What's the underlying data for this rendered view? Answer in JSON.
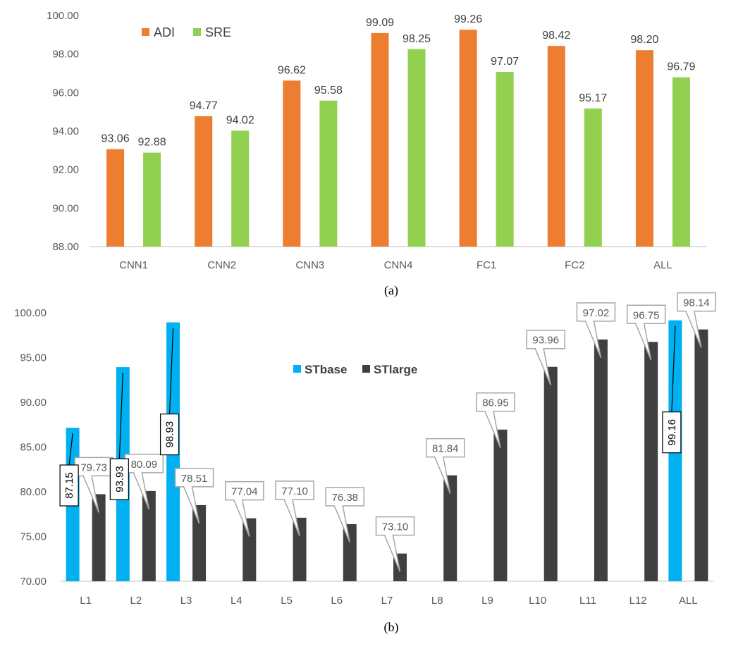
{
  "chart_data": [
    {
      "type": "bar",
      "caption": "(a)",
      "categories": [
        "CNN1",
        "CNN2",
        "CNN3",
        "CNN4",
        "FC1",
        "FC2",
        "ALL"
      ],
      "series": [
        {
          "name": "ADI",
          "color": "#ED7D31",
          "values": [
            93.06,
            94.77,
            96.62,
            99.09,
            99.26,
            98.42,
            98.2
          ]
        },
        {
          "name": "SRE",
          "color": "#92D050",
          "values": [
            92.88,
            94.02,
            95.58,
            98.25,
            97.07,
            95.17,
            96.79
          ]
        }
      ],
      "value_labels": {
        "ADI": [
          "93.06",
          "94.77",
          "96.62",
          "99.09",
          "99.26",
          "98.42",
          "98.20"
        ],
        "SRE": [
          "92.88",
          "94.02",
          "95.58",
          "98.25",
          "97.07",
          "95.17",
          "96.79"
        ]
      },
      "ylim": [
        88,
        100
      ],
      "yticks": [
        88,
        90,
        92,
        94,
        96,
        98,
        100
      ],
      "ytick_labels": [
        "88.00",
        "90.00",
        "92.00",
        "94.00",
        "96.00",
        "98.00",
        "100.00"
      ],
      "legend_position": "top-left",
      "grid": false
    },
    {
      "type": "bar",
      "caption": "(b)",
      "categories": [
        "L1",
        "L2",
        "L3",
        "L4",
        "L5",
        "L6",
        "L7",
        "L8",
        "L9",
        "L10",
        "L11",
        "L12",
        "ALL"
      ],
      "series": [
        {
          "name": "STbase",
          "color": "#00B0F0",
          "values": [
            87.15,
            93.93,
            98.93,
            null,
            null,
            null,
            null,
            null,
            null,
            null,
            null,
            null,
            99.16
          ]
        },
        {
          "name": "STlarge",
          "color": "#404040",
          "values": [
            79.73,
            80.09,
            78.51,
            77.04,
            77.1,
            76.38,
            73.1,
            81.84,
            86.95,
            93.96,
            97.02,
            96.75,
            98.14
          ]
        }
      ],
      "value_labels": {
        "STbase": [
          "87.15",
          "93.93",
          "98.93",
          "",
          "",
          "",
          "",
          "",
          "",
          "",
          "",
          "",
          "99.16"
        ],
        "STlarge": [
          "79.73",
          "80.09",
          "78.51",
          "77.04",
          "77.10",
          "76.38",
          "73.10",
          "81.84",
          "86.95",
          "93.96",
          "97.02",
          "96.75",
          "98.14"
        ]
      },
      "ylim": [
        70,
        100
      ],
      "yticks": [
        70,
        75,
        80,
        85,
        90,
        95,
        100
      ],
      "ytick_labels": [
        "70.00",
        "75.00",
        "80.00",
        "85.00",
        "90.00",
        "95.00",
        "100.00"
      ],
      "legend_position": "top-center",
      "grid": false
    }
  ]
}
